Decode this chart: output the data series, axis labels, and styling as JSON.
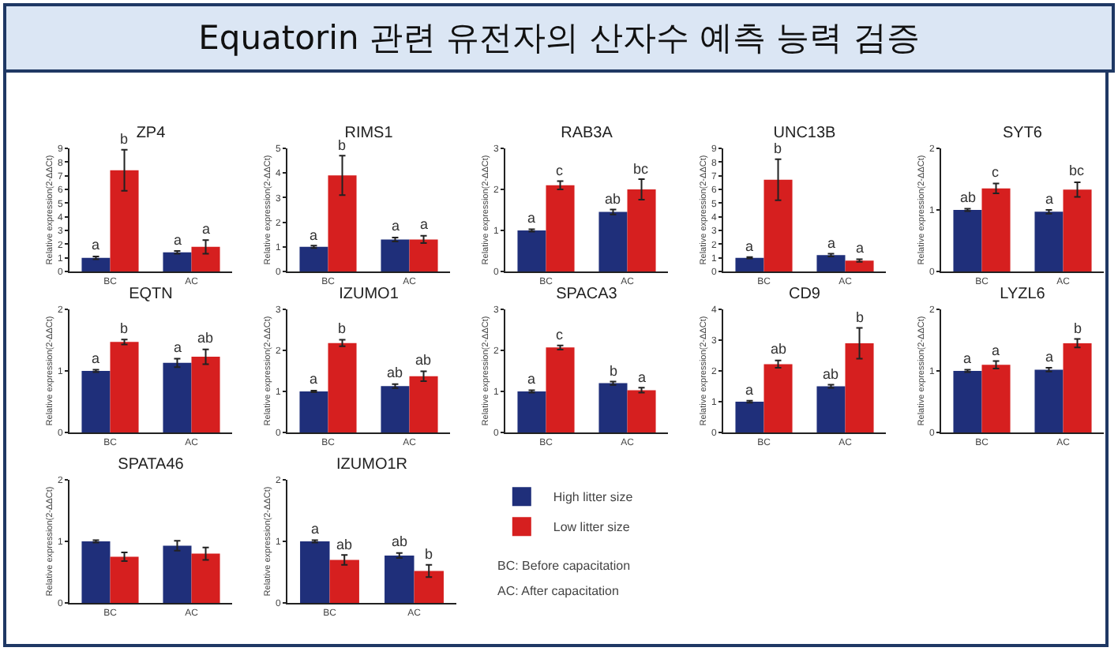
{
  "chart_data": [
    {
      "type": "other",
      "title": "Equatorin 관련 유전자의 산자수 예측 능력 검증"
    },
    {
      "type": "bar",
      "title": "ZP4",
      "ylabel": "Relative expression(2-ΔΔCt)",
      "categories": [
        "BC",
        "AC"
      ],
      "ylim": [
        0,
        9
      ],
      "yticks": [
        0,
        1,
        2,
        3,
        4,
        5,
        6,
        7,
        8,
        9
      ],
      "series": [
        {
          "color": "#1f2f7a",
          "values": [
            1.0,
            1.4
          ],
          "errors": [
            0.1,
            0.1
          ],
          "value_labels": [
            "a",
            "a"
          ]
        },
        {
          "color": "#d61f1f",
          "values": [
            7.4,
            1.8
          ],
          "errors": [
            1.5,
            0.5
          ],
          "value_labels": [
            "b",
            "a"
          ]
        }
      ]
    },
    {
      "type": "bar",
      "title": "RIMS1",
      "ylabel": "Relative expression(2-ΔΔCt)",
      "categories": [
        "BC",
        "AC"
      ],
      "ylim": [
        0,
        5
      ],
      "yticks": [
        0,
        1,
        2,
        3,
        4,
        5
      ],
      "series": [
        {
          "color": "#1f2f7a",
          "values": [
            1.0,
            1.3
          ],
          "errors": [
            0.05,
            0.08
          ],
          "value_labels": [
            "a",
            "a"
          ]
        },
        {
          "color": "#d61f1f",
          "values": [
            3.9,
            1.3
          ],
          "errors": [
            0.8,
            0.15
          ],
          "value_labels": [
            "b",
            "a"
          ]
        }
      ]
    },
    {
      "type": "bar",
      "title": "RAB3A",
      "ylabel": "Relative expression(2-ΔΔCt)",
      "categories": [
        "BC",
        "AC"
      ],
      "ylim": [
        0,
        3
      ],
      "yticks": [
        0,
        1,
        2,
        3
      ],
      "series": [
        {
          "color": "#1f2f7a",
          "values": [
            1.0,
            1.45
          ],
          "errors": [
            0.03,
            0.06
          ],
          "value_labels": [
            "a",
            "ab"
          ]
        },
        {
          "color": "#d61f1f",
          "values": [
            2.1,
            2.0
          ],
          "errors": [
            0.1,
            0.25
          ],
          "value_labels": [
            "c",
            "bc"
          ]
        }
      ]
    },
    {
      "type": "bar",
      "title": "UNC13B",
      "ylabel": "Relative expression(2-ΔΔCt)",
      "categories": [
        "BC",
        "AC"
      ],
      "ylim": [
        0,
        9
      ],
      "yticks": [
        0,
        1,
        2,
        3,
        4,
        5,
        6,
        7,
        8,
        9
      ],
      "series": [
        {
          "color": "#1f2f7a",
          "values": [
            1.0,
            1.2
          ],
          "errors": [
            0.05,
            0.1
          ],
          "value_labels": [
            "a",
            "a"
          ]
        },
        {
          "color": "#d61f1f",
          "values": [
            6.7,
            0.8
          ],
          "errors": [
            1.5,
            0.1
          ],
          "value_labels": [
            "b",
            "a"
          ]
        }
      ]
    },
    {
      "type": "bar",
      "title": "SYT6",
      "ylabel": "Relative expression(2-ΔΔCt)",
      "categories": [
        "BC",
        "AC"
      ],
      "ylim": [
        0,
        2
      ],
      "yticks": [
        0,
        1,
        2
      ],
      "series": [
        {
          "color": "#1f2f7a",
          "values": [
            1.0,
            0.97
          ],
          "errors": [
            0.02,
            0.03
          ],
          "value_labels": [
            "ab",
            "a"
          ]
        },
        {
          "color": "#d61f1f",
          "values": [
            1.35,
            1.33
          ],
          "errors": [
            0.08,
            0.12
          ],
          "value_labels": [
            "c",
            "bc"
          ]
        }
      ]
    },
    {
      "type": "bar",
      "title": "EQTN",
      "ylabel": "Relative expression(2-ΔΔCt)",
      "categories": [
        "BC",
        "AC"
      ],
      "ylim": [
        0,
        2
      ],
      "yticks": [
        0,
        1,
        2
      ],
      "series": [
        {
          "color": "#1f2f7a",
          "values": [
            1.0,
            1.13
          ],
          "errors": [
            0.02,
            0.07
          ],
          "value_labels": [
            "a",
            "a"
          ]
        },
        {
          "color": "#d61f1f",
          "values": [
            1.47,
            1.23
          ],
          "errors": [
            0.04,
            0.12
          ],
          "value_labels": [
            "b",
            "ab"
          ]
        }
      ]
    },
    {
      "type": "bar",
      "title": "IZUMO1",
      "ylabel": "Relative expression(2-ΔΔCt)",
      "categories": [
        "BC",
        "AC"
      ],
      "ylim": [
        0,
        3
      ],
      "yticks": [
        0,
        1,
        2,
        3
      ],
      "series": [
        {
          "color": "#1f2f7a",
          "values": [
            1.0,
            1.13
          ],
          "errors": [
            0.02,
            0.05
          ],
          "value_labels": [
            "a",
            "ab"
          ]
        },
        {
          "color": "#d61f1f",
          "values": [
            2.18,
            1.37
          ],
          "errors": [
            0.08,
            0.12
          ],
          "value_labels": [
            "b",
            "ab"
          ]
        }
      ]
    },
    {
      "type": "bar",
      "title": "SPACA3",
      "ylabel": "Relative expression(2-ΔΔCt)",
      "categories": [
        "BC",
        "AC"
      ],
      "ylim": [
        0,
        3
      ],
      "yticks": [
        0,
        1,
        2,
        3
      ],
      "series": [
        {
          "color": "#1f2f7a",
          "values": [
            1.0,
            1.2
          ],
          "errors": [
            0.03,
            0.04
          ],
          "value_labels": [
            "a",
            "b"
          ]
        },
        {
          "color": "#d61f1f",
          "values": [
            2.07,
            1.03
          ],
          "errors": [
            0.05,
            0.06
          ],
          "value_labels": [
            "c",
            "a"
          ]
        }
      ]
    },
    {
      "type": "bar",
      "title": "CD9",
      "ylabel": "Relative expression(2-ΔΔCt)",
      "categories": [
        "BC",
        "AC"
      ],
      "ylim": [
        0,
        4
      ],
      "yticks": [
        0,
        1,
        2,
        3,
        4
      ],
      "series": [
        {
          "color": "#1f2f7a",
          "values": [
            1.0,
            1.5
          ],
          "errors": [
            0.03,
            0.05
          ],
          "value_labels": [
            "a",
            "ab"
          ]
        },
        {
          "color": "#d61f1f",
          "values": [
            2.22,
            2.9
          ],
          "errors": [
            0.12,
            0.5
          ],
          "value_labels": [
            "ab",
            "b"
          ]
        }
      ]
    },
    {
      "type": "bar",
      "title": "LYZL6",
      "ylabel": "Relative expression(2-ΔΔCt)",
      "categories": [
        "BC",
        "AC"
      ],
      "ylim": [
        0,
        2
      ],
      "yticks": [
        0,
        1,
        2
      ],
      "series": [
        {
          "color": "#1f2f7a",
          "values": [
            1.0,
            1.02
          ],
          "errors": [
            0.02,
            0.03
          ],
          "value_labels": [
            "a",
            "a"
          ]
        },
        {
          "color": "#d61f1f",
          "values": [
            1.1,
            1.45
          ],
          "errors": [
            0.06,
            0.07
          ],
          "value_labels": [
            "a",
            "b"
          ]
        }
      ]
    },
    {
      "type": "bar",
      "title": "SPATA46",
      "ylabel": "Relative expression(2-ΔΔCt)",
      "categories": [
        "BC",
        "AC"
      ],
      "ylim": [
        0,
        2
      ],
      "yticks": [
        0,
        1,
        2
      ],
      "series": [
        {
          "color": "#1f2f7a",
          "values": [
            1.0,
            0.93
          ],
          "errors": [
            0.02,
            0.08
          ]
        },
        {
          "color": "#d61f1f",
          "values": [
            0.75,
            0.8
          ],
          "errors": [
            0.07,
            0.1
          ]
        }
      ]
    },
    {
      "type": "bar",
      "title": "IZUMO1R",
      "ylabel": "Relative expression(2-ΔΔCt)",
      "categories": [
        "BC",
        "AC"
      ],
      "ylim": [
        0,
        2
      ],
      "yticks": [
        0,
        1,
        2
      ],
      "legend": "right",
      "annotations": [
        "BC: Before capacitation",
        "AC: After capacitation"
      ],
      "series": [
        {
          "name": "High litter size",
          "color": "#1f2f7a",
          "values": [
            1.0,
            0.77
          ],
          "errors": [
            0.02,
            0.04
          ],
          "value_labels": [
            "a",
            "ab"
          ]
        },
        {
          "name": "Low litter size",
          "color": "#d61f1f",
          "values": [
            0.7,
            0.52
          ],
          "errors": [
            0.08,
            0.1
          ],
          "value_labels": [
            "ab",
            "b"
          ]
        }
      ]
    }
  ]
}
